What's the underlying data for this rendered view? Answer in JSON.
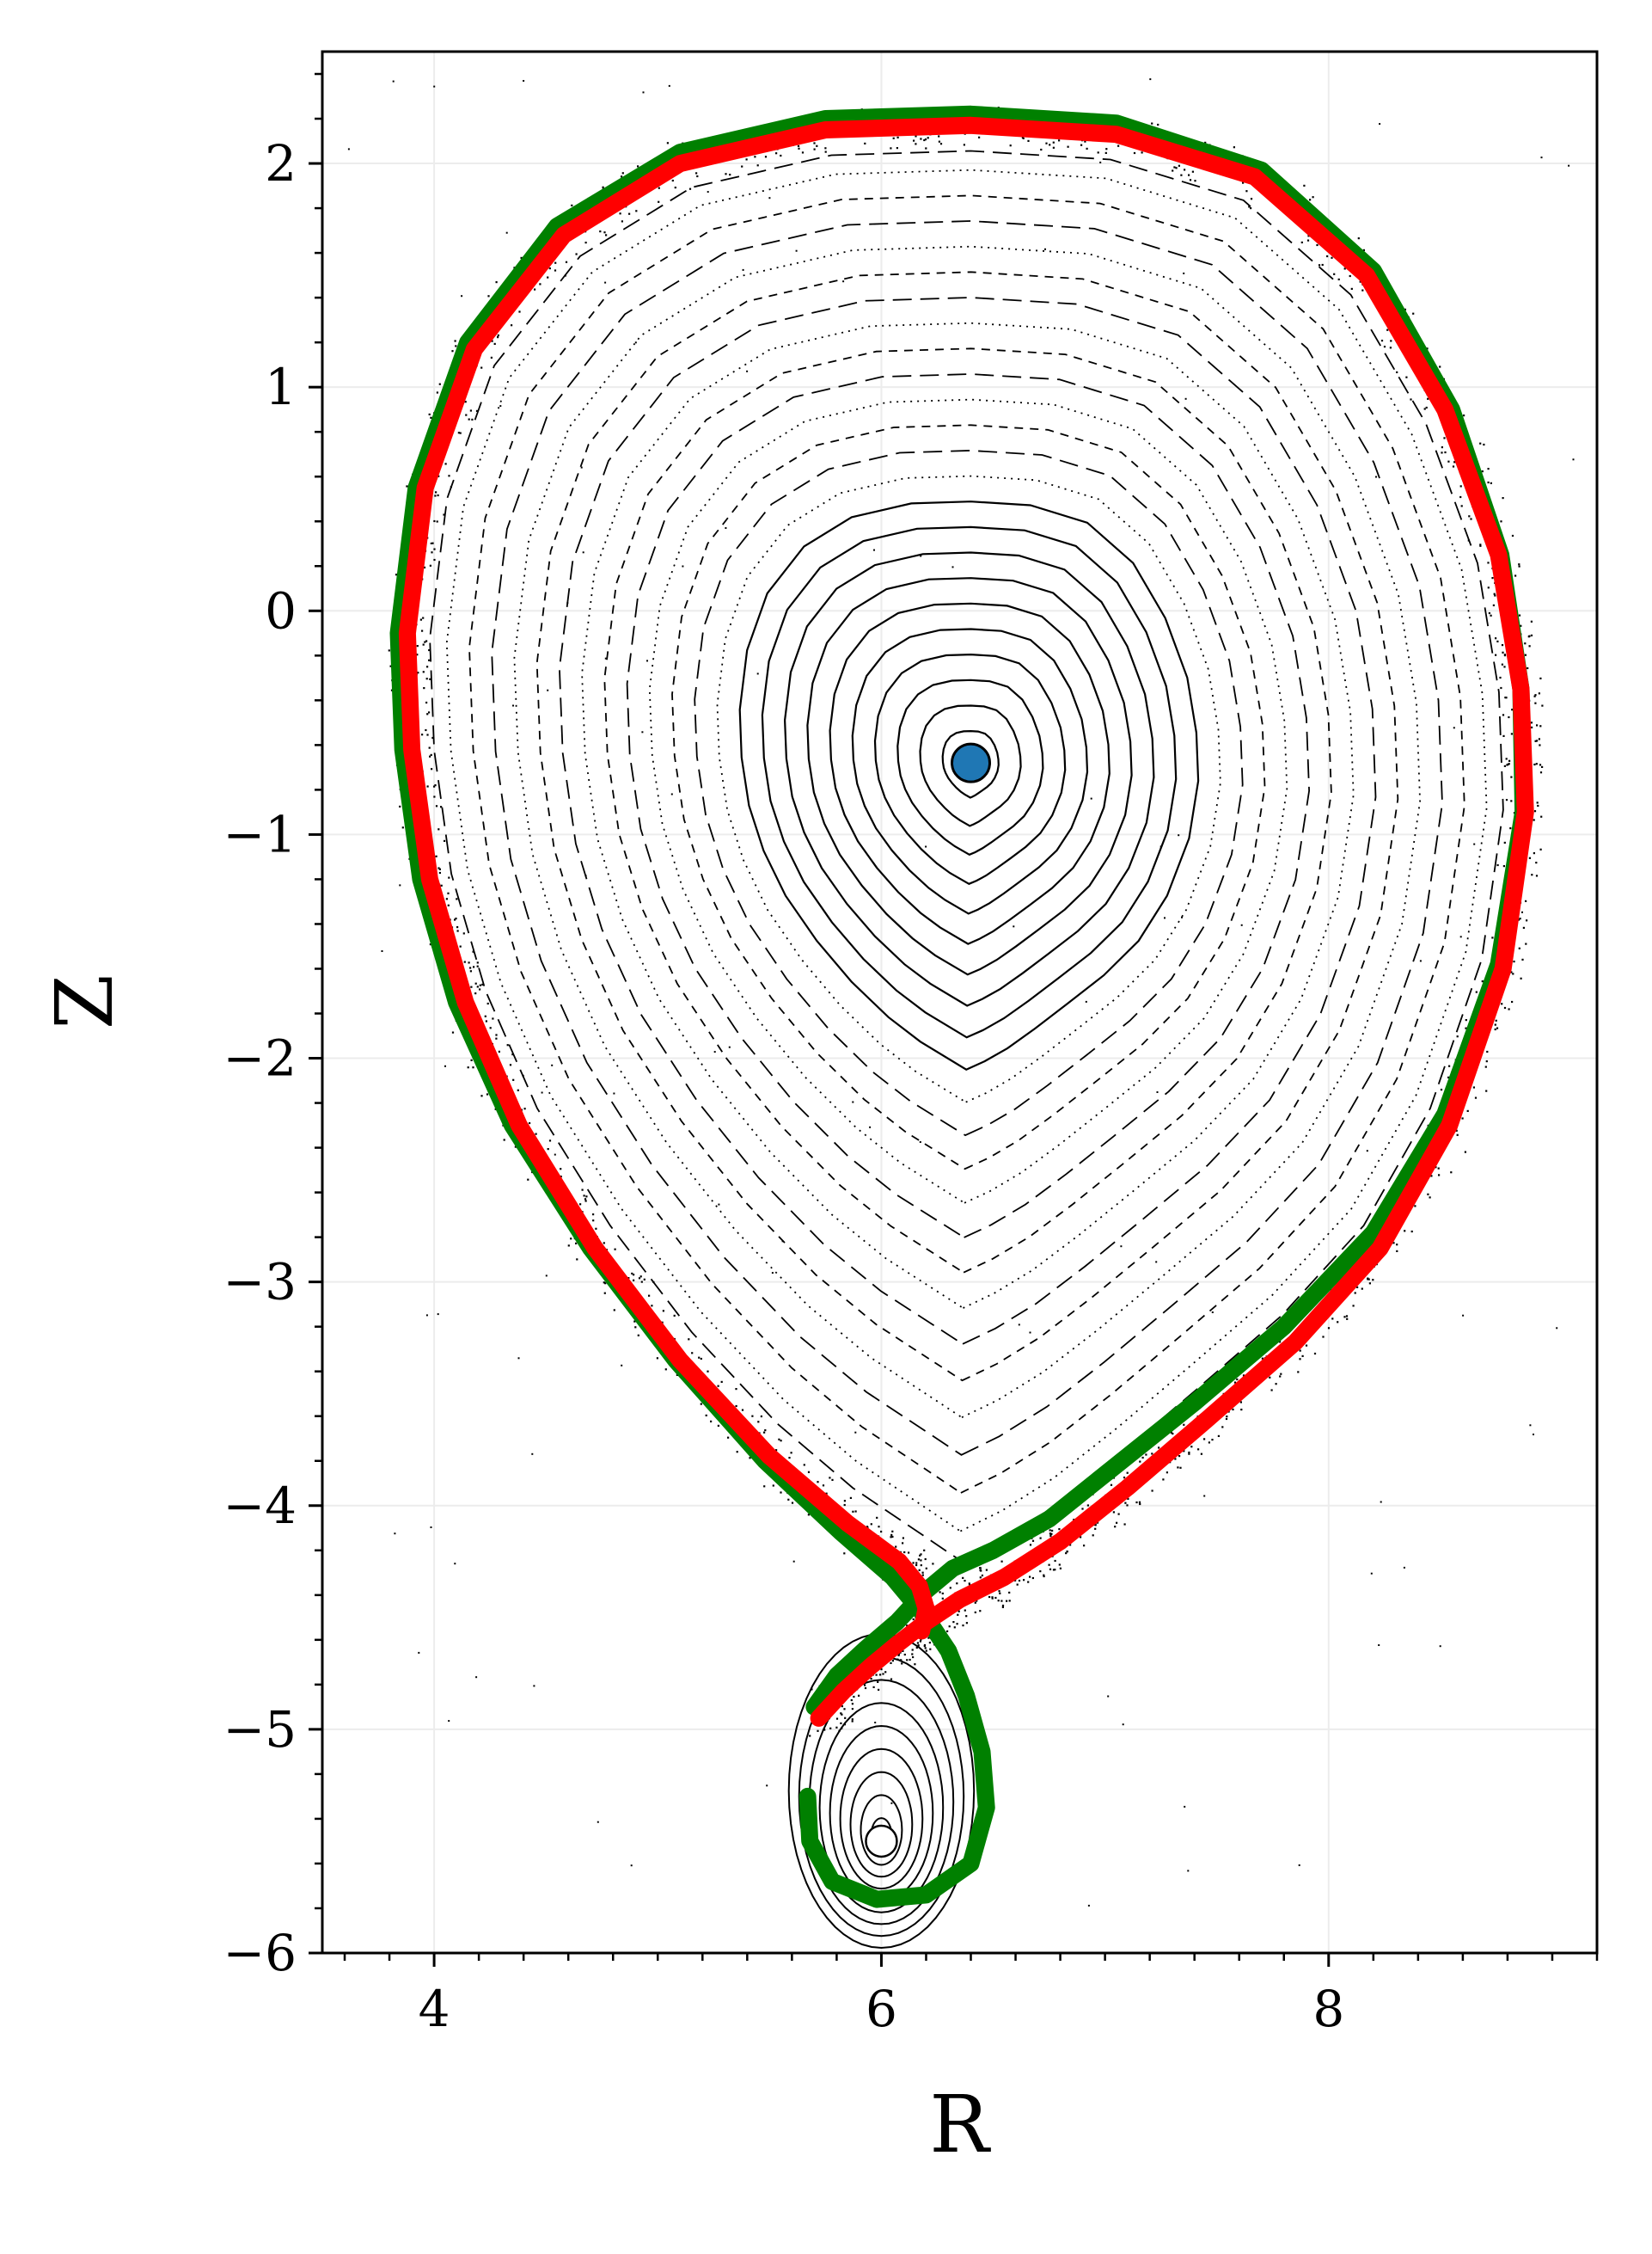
{
  "chart_data": {
    "type": "scatter",
    "title": "",
    "xlabel": "R",
    "ylabel": "Z",
    "xlim": [
      3.5,
      9.2
    ],
    "ylim": [
      -6.0,
      2.5
    ],
    "grid": true,
    "x_ticks": [
      4,
      6,
      8
    ],
    "y_ticks": [
      2,
      1,
      0,
      -1,
      -2,
      -3,
      -4,
      -5,
      -6
    ],
    "x_tick_labels": [
      "4",
      "6",
      "8"
    ],
    "y_tick_labels": [
      "2",
      "1",
      "0",
      "−1",
      "−2",
      "−3",
      "−4",
      "−5",
      "−6"
    ],
    "magnetic_axis": {
      "R": 6.4,
      "Z": -0.68
    },
    "secondary_axis": {
      "R": 6.0,
      "Z": -5.5
    },
    "x_point": {
      "R": 6.2,
      "Z": -4.38
    },
    "flux_surfaces": {
      "center": {
        "R": 6.4,
        "Z": -0.68
      },
      "scales": [
        0.05,
        0.09,
        0.13,
        0.17,
        0.21,
        0.25,
        0.29,
        0.33,
        0.37,
        0.41,
        0.45,
        0.49,
        0.53,
        0.57,
        0.61,
        0.65,
        0.69,
        0.73,
        0.77,
        0.81,
        0.85,
        0.89,
        0.93,
        0.96
      ]
    },
    "lower_island_surfaces": {
      "center": {
        "R": 6.0,
        "Z": -5.5
      },
      "scales": [
        0.1,
        0.2,
        0.3,
        0.4,
        0.5,
        0.6,
        0.7,
        0.8,
        0.9
      ]
    },
    "series": [
      {
        "color": "#008000",
        "points": [
          [
            5.7,
            -4.9
          ],
          [
            5.8,
            -4.76
          ],
          [
            5.93,
            -4.64
          ],
          [
            6.07,
            -4.52
          ],
          [
            6.2,
            -4.38
          ],
          [
            6.32,
            -4.28
          ],
          [
            6.5,
            -4.2
          ],
          [
            6.75,
            -4.06
          ],
          [
            7.05,
            -3.82
          ],
          [
            7.4,
            -3.54
          ],
          [
            7.8,
            -3.2
          ],
          [
            8.2,
            -2.78
          ],
          [
            8.52,
            -2.25
          ],
          [
            8.76,
            -1.58
          ],
          [
            8.87,
            -0.9
          ],
          [
            8.86,
            -0.35
          ],
          [
            8.77,
            0.25
          ],
          [
            8.55,
            0.9
          ],
          [
            8.2,
            1.52
          ],
          [
            7.7,
            1.97
          ],
          [
            7.05,
            2.18
          ],
          [
            6.4,
            2.22
          ],
          [
            5.75,
            2.2
          ],
          [
            5.1,
            2.05
          ],
          [
            4.55,
            1.72
          ],
          [
            4.15,
            1.2
          ],
          [
            3.92,
            0.55
          ],
          [
            3.84,
            -0.1
          ],
          [
            3.86,
            -0.62
          ],
          [
            3.94,
            -1.2
          ],
          [
            4.1,
            -1.75
          ],
          [
            4.35,
            -2.3
          ],
          [
            4.7,
            -2.85
          ],
          [
            5.08,
            -3.35
          ],
          [
            5.48,
            -3.8
          ],
          [
            5.82,
            -4.12
          ],
          [
            6.05,
            -4.32
          ],
          [
            6.2,
            -4.5
          ],
          [
            6.3,
            -4.65
          ],
          [
            6.38,
            -4.85
          ],
          [
            6.45,
            -5.1
          ],
          [
            6.47,
            -5.35
          ],
          [
            6.4,
            -5.6
          ],
          [
            6.2,
            -5.74
          ],
          [
            5.98,
            -5.76
          ],
          [
            5.78,
            -5.68
          ],
          [
            5.68,
            -5.5
          ],
          [
            5.67,
            -5.3
          ]
        ]
      },
      {
        "color": "#ff0000",
        "points": [
          [
            5.72,
            -4.95
          ],
          [
            5.83,
            -4.83
          ],
          [
            5.95,
            -4.72
          ],
          [
            6.07,
            -4.62
          ],
          [
            6.2,
            -4.52
          ],
          [
            6.35,
            -4.42
          ],
          [
            6.55,
            -4.32
          ],
          [
            6.8,
            -4.16
          ],
          [
            7.1,
            -3.92
          ],
          [
            7.45,
            -3.62
          ],
          [
            7.85,
            -3.27
          ],
          [
            8.23,
            -2.85
          ],
          [
            8.54,
            -2.3
          ],
          [
            8.78,
            -1.6
          ],
          [
            8.88,
            -0.9
          ],
          [
            8.86,
            -0.35
          ],
          [
            8.76,
            0.25
          ],
          [
            8.52,
            0.9
          ],
          [
            8.17,
            1.5
          ],
          [
            7.67,
            1.94
          ],
          [
            7.05,
            2.13
          ],
          [
            6.4,
            2.17
          ],
          [
            5.75,
            2.15
          ],
          [
            5.1,
            2.0
          ],
          [
            4.58,
            1.68
          ],
          [
            4.18,
            1.17
          ],
          [
            3.96,
            0.55
          ],
          [
            3.88,
            -0.1
          ],
          [
            3.9,
            -0.62
          ],
          [
            3.98,
            -1.2
          ],
          [
            4.14,
            -1.75
          ],
          [
            4.38,
            -2.3
          ],
          [
            4.72,
            -2.85
          ],
          [
            5.1,
            -3.35
          ],
          [
            5.5,
            -3.78
          ],
          [
            5.85,
            -4.08
          ],
          [
            6.08,
            -4.25
          ],
          [
            6.17,
            -4.36
          ],
          [
            6.2,
            -4.46
          ],
          [
            6.18,
            -4.56
          ]
        ]
      },
      {
        "color": "#1f77b4",
        "points": [
          [
            6.4,
            -0.68
          ]
        ]
      }
    ]
  }
}
